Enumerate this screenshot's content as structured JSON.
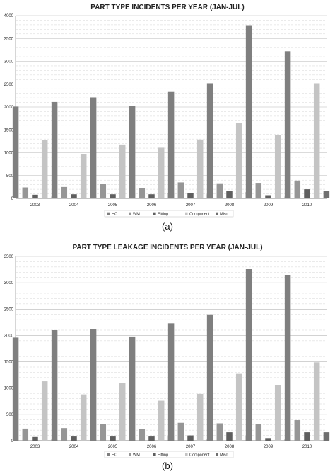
{
  "chart_data": [
    {
      "type": "bar",
      "title": "PART TYPE INCIDENTS PER YEAR (JAN-JUL)",
      "caption": "(a)",
      "categories": [
        "2003",
        "2004",
        "2005",
        "2006",
        "2007",
        "2008",
        "2009",
        "2010"
      ],
      "ylim": [
        0,
        4000
      ],
      "yticks": [
        0,
        500,
        1000,
        1500,
        2000,
        2500,
        3000,
        3500,
        4000
      ],
      "grid": true,
      "legend_position": "bottom",
      "series": [
        {
          "name": "HC",
          "color": "#7f7f7f",
          "values": [
            2010,
            2110,
            2210,
            2030,
            2330,
            2520,
            3790,
            3220
          ]
        },
        {
          "name": "WM",
          "color": "#969696",
          "values": [
            240,
            250,
            310,
            230,
            350,
            330,
            340,
            390
          ]
        },
        {
          "name": "Fitting",
          "color": "#5f5f5f",
          "values": [
            80,
            90,
            90,
            90,
            110,
            170,
            70,
            200
          ]
        },
        {
          "name": "Component",
          "color": "#c4c4c4",
          "values": [
            1280,
            970,
            1180,
            1110,
            1290,
            1650,
            1390,
            2520
          ]
        },
        {
          "name": "Misc",
          "color": "#6f6f6f",
          "values": [
            40,
            50,
            110,
            110,
            90,
            140,
            40,
            170
          ]
        }
      ]
    },
    {
      "type": "bar",
      "title": "PART TYPE LEAKAGE INCIDENTS PER YEAR (JAN-JUL)",
      "caption": "(b)",
      "categories": [
        "2003",
        "2004",
        "2005",
        "2006",
        "2007",
        "2008",
        "2009",
        "2010"
      ],
      "ylim": [
        0,
        3500
      ],
      "yticks": [
        0,
        500,
        1000,
        1500,
        2000,
        2500,
        3000,
        3500
      ],
      "grid": true,
      "legend_position": "bottom",
      "series": [
        {
          "name": "HC",
          "color": "#7f7f7f",
          "values": [
            1960,
            2100,
            2120,
            1980,
            2230,
            2400,
            3270,
            3150
          ]
        },
        {
          "name": "WM",
          "color": "#969696",
          "values": [
            230,
            240,
            310,
            220,
            340,
            330,
            320,
            390
          ]
        },
        {
          "name": "Fitting",
          "color": "#5f5f5f",
          "values": [
            70,
            80,
            80,
            80,
            100,
            160,
            50,
            160
          ]
        },
        {
          "name": "Component",
          "color": "#c4c4c4",
          "values": [
            1130,
            880,
            1100,
            760,
            890,
            1270,
            1060,
            1490
          ]
        },
        {
          "name": "Misc",
          "color": "#6f6f6f",
          "values": [
            30,
            20,
            60,
            80,
            30,
            90,
            40,
            160
          ]
        }
      ]
    }
  ]
}
